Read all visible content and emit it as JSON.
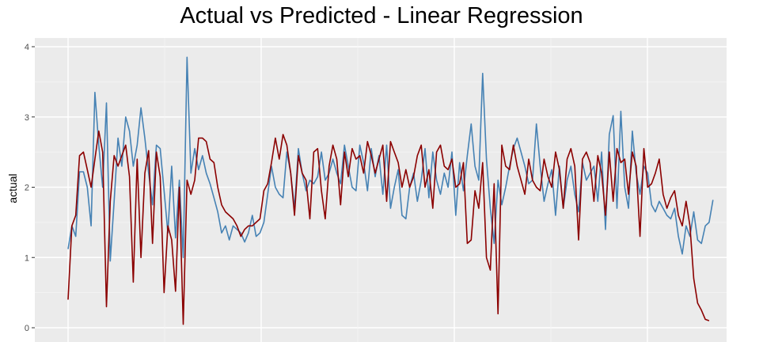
{
  "chart_data": {
    "type": "line",
    "title": "Actual vs Predicted - Linear Regression",
    "xlabel": "",
    "ylabel": "actual",
    "ylim": [
      0,
      4
    ],
    "yticks": [
      "0",
      "1",
      "2",
      "3",
      "4"
    ],
    "grid": true,
    "legend": "none",
    "n_points": 165,
    "series": [
      {
        "color": "#4682b4",
        "values": [
          1.12,
          1.45,
          1.3,
          2.22,
          2.22,
          2.0,
          1.45,
          3.35,
          2.6,
          2.0,
          3.2,
          0.95,
          1.8,
          2.7,
          2.3,
          3.0,
          2.8,
          2.3,
          2.6,
          3.13,
          2.7,
          2.2,
          1.75,
          2.6,
          2.55,
          1.95,
          1.35,
          2.3,
          1.28,
          2.1,
          1.0,
          3.85,
          2.2,
          2.55,
          2.25,
          2.45,
          2.2,
          2.05,
          1.85,
          1.65,
          1.35,
          1.45,
          1.25,
          1.45,
          1.4,
          1.35,
          1.22,
          1.35,
          1.6,
          1.3,
          1.35,
          1.5,
          1.9,
          2.3,
          2.0,
          1.9,
          1.85,
          2.5,
          2.2,
          1.7,
          2.55,
          2.2,
          1.95,
          2.1,
          2.05,
          2.15,
          2.5,
          2.1,
          2.2,
          2.4,
          2.2,
          2.05,
          2.6,
          2.3,
          2.0,
          1.95,
          2.6,
          2.35,
          1.95,
          2.55,
          2.15,
          2.45,
          1.9,
          2.6,
          1.7,
          2.0,
          2.25,
          1.6,
          1.55,
          2.0,
          2.2,
          1.8,
          2.1,
          2.55,
          1.85,
          2.5,
          2.1,
          1.9,
          2.2,
          2.0,
          2.5,
          1.6,
          2.35,
          1.95,
          2.45,
          2.9,
          2.3,
          2.1,
          3.62,
          2.4,
          1.7,
          1.2,
          2.1,
          1.75,
          2.0,
          2.3,
          2.55,
          2.7,
          2.5,
          2.3,
          2.05,
          2.1,
          2.9,
          2.3,
          1.8,
          2.05,
          2.25,
          1.6,
          2.3,
          1.7,
          2.1,
          2.3,
          1.9,
          1.65,
          2.35,
          2.1,
          2.2,
          2.3,
          1.8,
          2.5,
          1.4,
          2.75,
          3.02,
          1.7,
          3.08,
          2.0,
          1.7,
          2.8,
          2.2,
          1.9,
          2.3,
          2.2,
          1.75,
          1.65,
          1.8,
          1.7,
          1.6,
          1.55,
          1.7,
          1.3,
          1.05,
          1.45,
          1.3,
          1.65,
          1.25,
          1.2,
          1.45,
          1.5,
          1.82
        ]
      },
      {
        "color": "#8b0000",
        "values": [
          0.4,
          1.45,
          1.6,
          2.45,
          2.5,
          2.25,
          2.0,
          2.4,
          2.8,
          2.5,
          0.3,
          1.8,
          2.45,
          2.3,
          2.45,
          2.6,
          2.15,
          0.65,
          2.4,
          1.0,
          2.2,
          2.52,
          1.2,
          2.5,
          2.15,
          0.5,
          1.45,
          1.25,
          0.52,
          2.0,
          0.05,
          2.1,
          1.9,
          2.1,
          2.7,
          2.7,
          2.65,
          2.4,
          2.35,
          2.0,
          1.75,
          1.65,
          1.6,
          1.55,
          1.45,
          1.3,
          1.4,
          1.45,
          1.45,
          1.5,
          1.55,
          1.95,
          2.05,
          2.35,
          2.7,
          2.4,
          2.75,
          2.6,
          2.2,
          1.6,
          2.45,
          2.2,
          2.1,
          1.55,
          2.5,
          2.55,
          1.95,
          1.55,
          2.3,
          2.6,
          2.4,
          1.75,
          2.5,
          2.15,
          2.55,
          2.4,
          2.45,
          2.2,
          2.65,
          2.45,
          2.2,
          2.4,
          2.6,
          1.8,
          2.65,
          2.5,
          2.35,
          2.0,
          2.25,
          2.0,
          2.15,
          2.45,
          2.6,
          2.0,
          2.25,
          1.7,
          2.5,
          2.6,
          2.3,
          2.25,
          2.4,
          2.0,
          2.05,
          2.35,
          1.2,
          1.25,
          1.95,
          1.7,
          2.35,
          1.0,
          0.82,
          2.05,
          0.2,
          2.6,
          2.3,
          2.25,
          2.6,
          2.3,
          2.1,
          1.9,
          2.4,
          2.1,
          2.0,
          1.95,
          2.4,
          2.15,
          2.0,
          2.5,
          2.25,
          1.7,
          2.4,
          2.55,
          2.3,
          1.25,
          2.4,
          2.5,
          2.35,
          1.8,
          2.45,
          2.2,
          1.6,
          2.5,
          1.8,
          2.55,
          2.35,
          2.4,
          1.9,
          2.5,
          2.3,
          1.3,
          2.55,
          2.0,
          2.05,
          2.2,
          2.4,
          1.9,
          1.7,
          1.85,
          1.95,
          1.6,
          1.45,
          1.8,
          1.45,
          0.7,
          0.35,
          0.25,
          0.12,
          0.1
        ]
      }
    ]
  }
}
